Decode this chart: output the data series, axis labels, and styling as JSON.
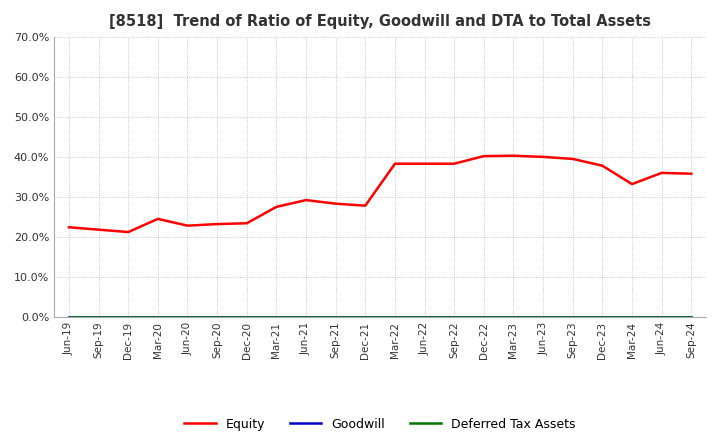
{
  "title": "[8518]  Trend of Ratio of Equity, Goodwill and DTA to Total Assets",
  "ylim": [
    0.0,
    0.7
  ],
  "yticks": [
    0.0,
    0.1,
    0.2,
    0.3,
    0.4,
    0.5,
    0.6,
    0.7
  ],
  "background_color": "#ffffff",
  "grid_color": "#aaaaaa",
  "dates": [
    "Jun-19",
    "Sep-19",
    "Dec-19",
    "Mar-20",
    "Jun-20",
    "Sep-20",
    "Dec-20",
    "Mar-21",
    "Jun-21",
    "Sep-21",
    "Dec-21",
    "Mar-22",
    "Jun-22",
    "Sep-22",
    "Dec-22",
    "Mar-23",
    "Jun-23",
    "Sep-23",
    "Dec-23",
    "Mar-24",
    "Jun-24",
    "Sep-24"
  ],
  "equity": [
    0.224,
    0.218,
    0.212,
    0.245,
    0.228,
    0.232,
    0.234,
    0.275,
    0.292,
    0.283,
    0.278,
    0.383,
    0.383,
    0.383,
    0.402,
    0.403,
    0.4,
    0.395,
    0.378,
    0.332,
    0.36,
    0.358
  ],
  "goodwill": [
    0.0,
    0.0,
    0.0,
    0.0,
    0.0,
    0.0,
    0.0,
    0.0,
    0.0,
    0.0,
    0.0,
    0.0,
    0.0,
    0.0,
    0.0,
    0.0,
    0.0,
    0.0,
    0.0,
    0.0,
    0.0,
    0.0
  ],
  "dta": [
    0.0,
    0.0,
    0.0,
    0.0,
    0.0,
    0.0,
    0.0,
    0.0,
    0.0,
    0.0,
    0.0,
    0.0,
    0.0,
    0.0,
    0.0,
    0.0,
    0.0,
    0.0,
    0.0,
    0.0,
    0.0,
    0.0
  ],
  "equity_color": "#ff0000",
  "goodwill_color": "#0000cc",
  "dta_color": "#007700",
  "line_width": 1.8,
  "figsize": [
    7.2,
    4.4
  ],
  "dpi": 100
}
